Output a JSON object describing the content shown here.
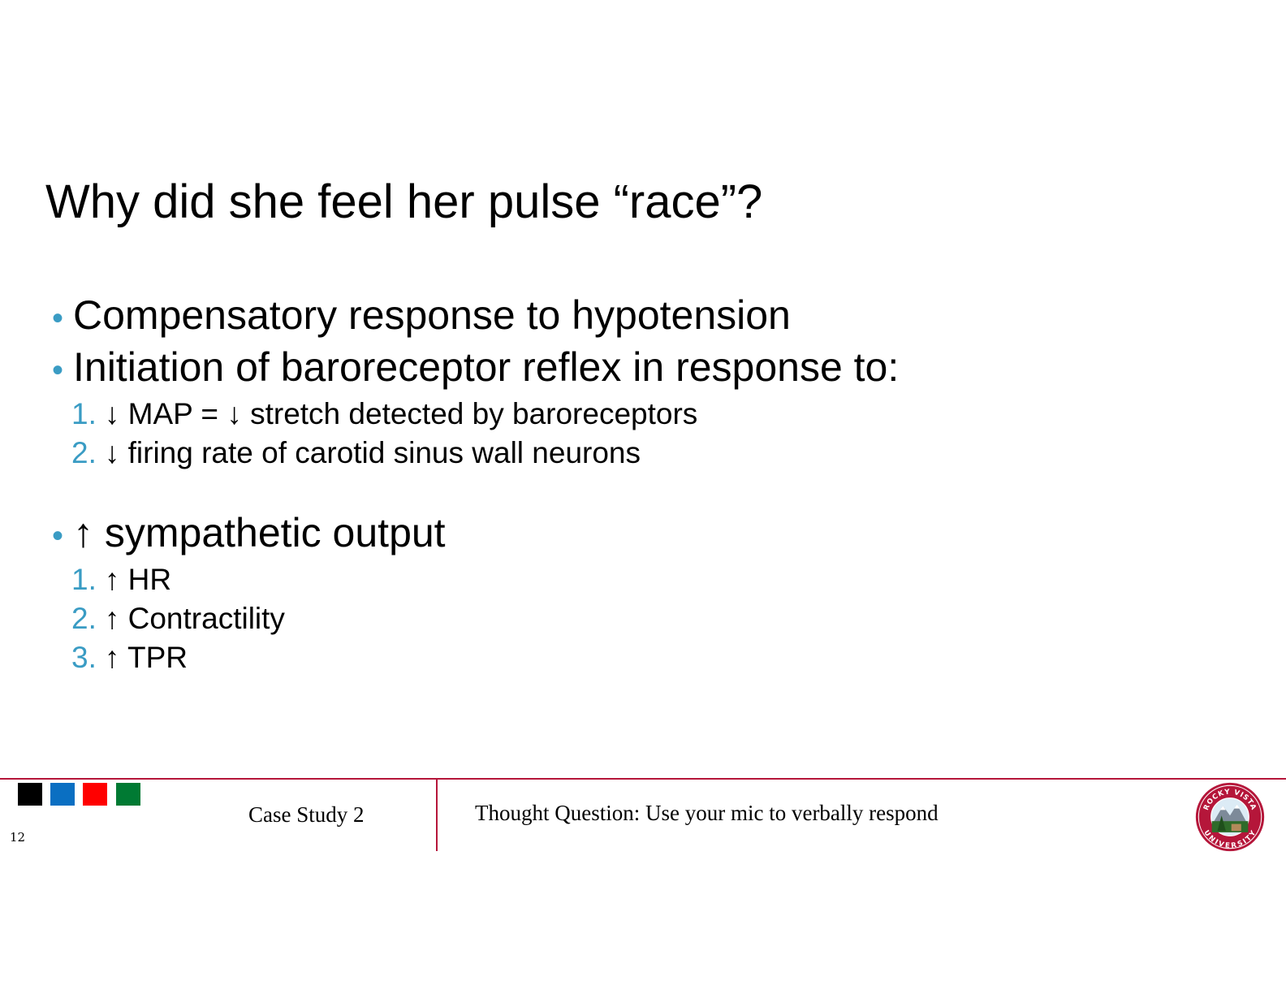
{
  "slide": {
    "title": "Why did she feel her pulse “race”?",
    "bullet_char": "•",
    "bullets": [
      {
        "text": "Compensatory response to hypotension"
      },
      {
        "text": "Initiation of baroreceptor reflex in response to:",
        "sub": [
          {
            "num": "1.",
            "text": "↓ MAP = ↓ stretch detected by baroreceptors"
          },
          {
            "num": "2.",
            "text": "↓ firing rate of carotid sinus wall neurons"
          }
        ]
      },
      {
        "text": "↑ sympathetic output",
        "sub": [
          {
            "num": "1.",
            "text": "↑ HR"
          },
          {
            "num": "2.",
            "text": "↑ Contractility"
          },
          {
            "num": "3.",
            "text": "↑ TPR"
          }
        ]
      }
    ]
  },
  "footer": {
    "page_number": "12",
    "left_label": "Case Study 2",
    "right_label": "Thought Question: Use your mic to verbally respond",
    "logo_text_top": "ROCKY VISTA",
    "logo_text_bottom": "UNIVERSITY"
  },
  "colors": {
    "accent": "#3a9cc4",
    "footer_rule": "#b5163a",
    "squares": [
      "#000000",
      "#0a6fc2",
      "#ff0000",
      "#007a33"
    ]
  }
}
